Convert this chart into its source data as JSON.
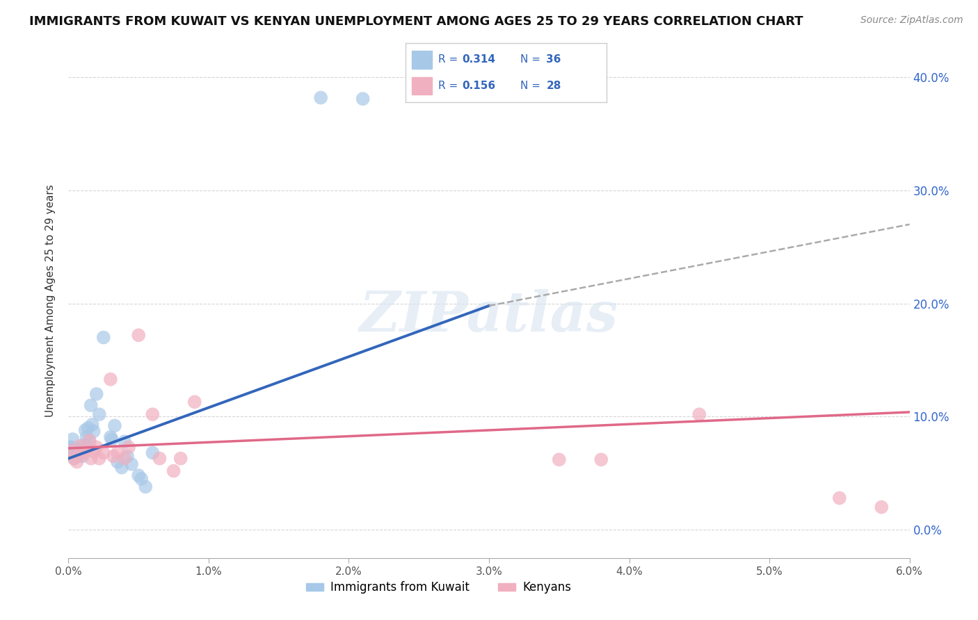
{
  "title": "IMMIGRANTS FROM KUWAIT VS KENYAN UNEMPLOYMENT AMONG AGES 25 TO 29 YEARS CORRELATION CHART",
  "source": "Source: ZipAtlas.com",
  "ylabel": "Unemployment Among Ages 25 to 29 years",
  "xlim": [
    0,
    0.06
  ],
  "ylim": [
    -0.025,
    0.43
  ],
  "xtick_vals": [
    0.0,
    0.01,
    0.02,
    0.03,
    0.04,
    0.05,
    0.06
  ],
  "xtick_labels": [
    "0.0%",
    "1.0%",
    "2.0%",
    "3.0%",
    "4.0%",
    "5.0%",
    "6.0%"
  ],
  "ytick_vals": [
    0.0,
    0.1,
    0.2,
    0.3,
    0.4
  ],
  "ytick_labels": [
    "0.0%",
    "10.0%",
    "20.0%",
    "30.0%",
    "40.0%"
  ],
  "legend_blue_r": "0.314",
  "legend_blue_n": "36",
  "legend_pink_r": "0.156",
  "legend_pink_n": "28",
  "blue_color": "#a8c8e8",
  "pink_color": "#f0b0c0",
  "blue_line_color": "#3366bb",
  "pink_line_color": "#e06888",
  "dashed_color": "#aaaaaa",
  "blue_scatter": [
    [
      0.0002,
      0.073
    ],
    [
      0.0003,
      0.08
    ],
    [
      0.0004,
      0.063
    ],
    [
      0.0005,
      0.068
    ],
    [
      0.0006,
      0.072
    ],
    [
      0.0007,
      0.065
    ],
    [
      0.0008,
      0.069
    ],
    [
      0.0009,
      0.07
    ],
    [
      0.001,
      0.065
    ],
    [
      0.0011,
      0.075
    ],
    [
      0.0012,
      0.088
    ],
    [
      0.0013,
      0.082
    ],
    [
      0.0014,
      0.09
    ],
    [
      0.0015,
      0.078
    ],
    [
      0.0016,
      0.11
    ],
    [
      0.0017,
      0.093
    ],
    [
      0.0018,
      0.087
    ],
    [
      0.002,
      0.12
    ],
    [
      0.0022,
      0.102
    ],
    [
      0.0025,
      0.17
    ],
    [
      0.003,
      0.082
    ],
    [
      0.0031,
      0.08
    ],
    [
      0.0033,
      0.092
    ],
    [
      0.0035,
      0.06
    ],
    [
      0.0038,
      0.055
    ],
    [
      0.004,
      0.078
    ],
    [
      0.0042,
      0.065
    ],
    [
      0.0045,
      0.058
    ],
    [
      0.005,
      0.048
    ],
    [
      0.0052,
      0.045
    ],
    [
      0.0055,
      0.038
    ],
    [
      0.006,
      0.068
    ],
    [
      0.0,
      0.073
    ],
    [
      0.0001,
      0.068
    ],
    [
      0.018,
      0.382
    ],
    [
      0.021,
      0.381
    ]
  ],
  "pink_scatter": [
    [
      0.0002,
      0.07
    ],
    [
      0.0004,
      0.063
    ],
    [
      0.0006,
      0.06
    ],
    [
      0.0008,
      0.074
    ],
    [
      0.001,
      0.067
    ],
    [
      0.0012,
      0.07
    ],
    [
      0.0015,
      0.079
    ],
    [
      0.0016,
      0.063
    ],
    [
      0.0018,
      0.069
    ],
    [
      0.002,
      0.073
    ],
    [
      0.0022,
      0.063
    ],
    [
      0.0025,
      0.068
    ],
    [
      0.003,
      0.133
    ],
    [
      0.0032,
      0.065
    ],
    [
      0.0035,
      0.068
    ],
    [
      0.004,
      0.063
    ],
    [
      0.0043,
      0.073
    ],
    [
      0.005,
      0.172
    ],
    [
      0.006,
      0.102
    ],
    [
      0.0065,
      0.063
    ],
    [
      0.0075,
      0.052
    ],
    [
      0.008,
      0.063
    ],
    [
      0.009,
      0.113
    ],
    [
      0.035,
      0.062
    ],
    [
      0.038,
      0.062
    ],
    [
      0.045,
      0.102
    ],
    [
      0.055,
      0.028
    ],
    [
      0.058,
      0.02
    ]
  ],
  "blue_line_solid": [
    [
      0.0,
      0.063
    ],
    [
      0.03,
      0.198
    ]
  ],
  "blue_line_dashed": [
    [
      0.03,
      0.198
    ],
    [
      0.06,
      0.27
    ]
  ],
  "pink_line": [
    [
      0.0,
      0.072
    ],
    [
      0.06,
      0.104
    ]
  ],
  "watermark": "ZIPatlas",
  "bg_color": "#ffffff",
  "grid_color": "#cccccc"
}
